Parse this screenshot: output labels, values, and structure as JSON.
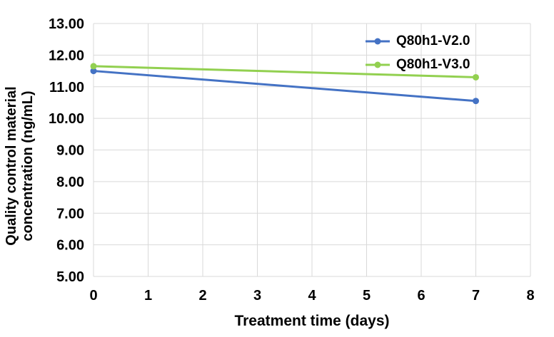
{
  "chart_data": {
    "type": "line",
    "title": "",
    "xlabel": "Treatment time (days)",
    "ylabel": "Quality control material concentration (ng/mL)",
    "ylabel_lines": [
      "Quality control material",
      "concentration (ng/mL)"
    ],
    "x": [
      0,
      7
    ],
    "series": [
      {
        "name": "Q80h1-V2.0",
        "color": "#4472C4",
        "values": [
          11.5,
          10.55
        ]
      },
      {
        "name": "Q80h1-V3.0",
        "color": "#92D050",
        "values": [
          11.65,
          11.3
        ]
      }
    ],
    "xlim": [
      0,
      8
    ],
    "ylim": [
      5,
      13
    ],
    "x_ticks": [
      0,
      1,
      2,
      3,
      4,
      5,
      6,
      7,
      8
    ],
    "y_ticks": [
      5,
      6,
      7,
      8,
      9,
      10,
      11,
      12,
      13
    ],
    "y_tick_labels": [
      "5.00",
      "6.00",
      "7.00",
      "8.00",
      "9.00",
      "10.00",
      "11.00",
      "12.00",
      "13.00"
    ],
    "y_tick_format": "0.00",
    "grid": true,
    "gridline_color": "#D9D9D9",
    "text_color": "#000000",
    "background_color": "#FFFFFF",
    "legend_position": "upper-right",
    "marker": "circle",
    "line_width": 3
  }
}
